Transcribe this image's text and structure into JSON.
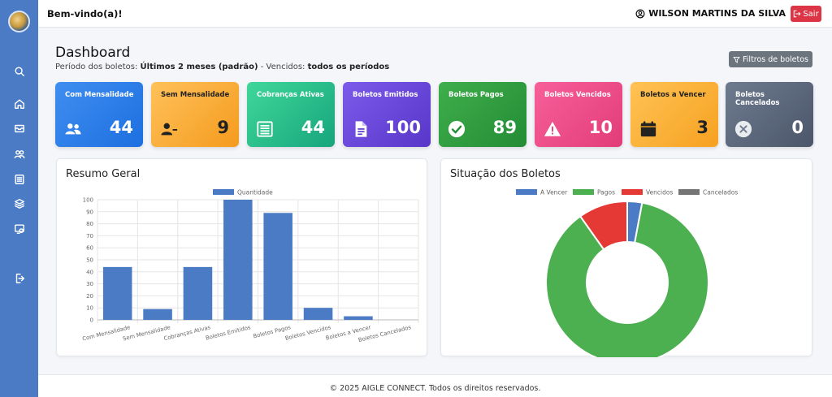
{
  "header": {
    "welcome": "Bem-vindo(a)!",
    "user_name": "WILSON MARTINS DA SILVA",
    "logout_label": "Sair"
  },
  "sidebar": {
    "items": [
      {
        "icon": "search-icon"
      },
      {
        "icon": "home-icon"
      },
      {
        "icon": "inbox-icon"
      },
      {
        "icon": "users-icon"
      },
      {
        "icon": "receipt-icon"
      },
      {
        "icon": "layers-icon"
      },
      {
        "icon": "settings-screen-icon"
      },
      {
        "icon": "logout-icon"
      }
    ]
  },
  "dashboard": {
    "title": "Dashboard",
    "period_prefix": "Período dos boletos: ",
    "period_value": "Últimos 2 meses (padrão)",
    "period_sep": " - Vencidos: ",
    "period_overdue": "todos os períodos",
    "filter_button": "Filtros de boletos"
  },
  "cards": [
    {
      "label": "Com Mensalidade",
      "value": "44",
      "icon": "users-icon"
    },
    {
      "label": "Sem Mensalidade",
      "value": "9",
      "icon": "user-minus-icon"
    },
    {
      "label": "Cobranças Ativas",
      "value": "44",
      "icon": "list-icon"
    },
    {
      "label": "Boletos Emitidos",
      "value": "100",
      "icon": "document-icon"
    },
    {
      "label": "Boletos Pagos",
      "value": "89",
      "icon": "check-circle-icon"
    },
    {
      "label": "Boletos Vencidos",
      "value": "10",
      "icon": "warning-icon"
    },
    {
      "label": "Boletos a Vencer",
      "value": "3",
      "icon": "calendar-icon"
    },
    {
      "label": "Boletos Cancelados",
      "value": "0",
      "icon": "x-circle-icon"
    }
  ],
  "panels": {
    "summary_title": "Resumo Geral",
    "status_title": "Situação dos Boletos"
  },
  "chart_data": [
    {
      "type": "bar",
      "title": "Resumo Geral",
      "categories": [
        "Com Mensalidade",
        "Sem Mensalidade",
        "Cobranças Ativas",
        "Boletos Emitidos",
        "Boletos Pagos",
        "Boletos Vencidos",
        "Boletos a Vencer",
        "Boletos Cancelados"
      ],
      "series": [
        {
          "name": "Quantidade",
          "values": [
            44,
            9,
            44,
            100,
            89,
            10,
            3,
            0
          ],
          "color": "#4a7bc4"
        }
      ],
      "ylim": [
        0,
        100
      ],
      "yticks": [
        0,
        10,
        20,
        30,
        40,
        50,
        60,
        70,
        80,
        90,
        100
      ],
      "grid": true,
      "legend": "top"
    },
    {
      "type": "pie",
      "title": "Situação dos Boletos",
      "labels": [
        "A Vencer",
        "Pagos",
        "Vencidos",
        "Cancelados"
      ],
      "values": [
        3,
        89,
        10,
        0
      ],
      "colors": [
        "#4a7bc4",
        "#4caf50",
        "#e53935",
        "#757575"
      ],
      "donut": true,
      "legend": "top"
    }
  ],
  "footer": {
    "text": "© 2025 AIGLE CONNECT. Todos os direitos reservados."
  }
}
